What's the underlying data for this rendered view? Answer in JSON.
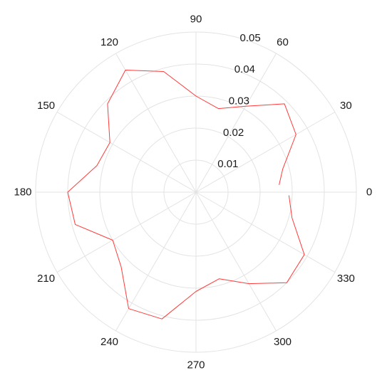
{
  "chart_data": {
    "type": "polar-line",
    "title": "",
    "theta_unit": "degrees",
    "angle_ticks": [
      0,
      30,
      60,
      90,
      120,
      150,
      180,
      210,
      240,
      270,
      300,
      330
    ],
    "angle_tick_labels": [
      "0",
      "30",
      "60",
      "90",
      "120",
      "150",
      "180",
      "210",
      "240",
      "270",
      "300",
      "330"
    ],
    "radial_ticks": [
      0.01,
      0.02,
      0.03,
      0.04,
      0.05
    ],
    "radial_tick_labels": [
      "0.01",
      "0.02",
      "0.03",
      "0.04",
      "0.05"
    ],
    "rlim": [
      0,
      0.05
    ],
    "grid": true,
    "series": [
      {
        "color": "#ff3b3b",
        "theta": [
          5,
          15,
          30,
          45,
          60,
          75,
          90,
          105,
          120,
          135,
          150,
          165,
          180,
          195,
          210,
          225,
          240,
          255,
          270,
          285,
          300,
          315,
          330,
          345,
          358
        ],
        "r": [
          0.026,
          0.028,
          0.036,
          0.039,
          0.031,
          0.027,
          0.03,
          0.039,
          0.044,
          0.039,
          0.031,
          0.032,
          0.04,
          0.039,
          0.03,
          0.033,
          0.042,
          0.041,
          0.031,
          0.028,
          0.033,
          0.04,
          0.039,
          0.031,
          0.029
        ]
      }
    ]
  }
}
